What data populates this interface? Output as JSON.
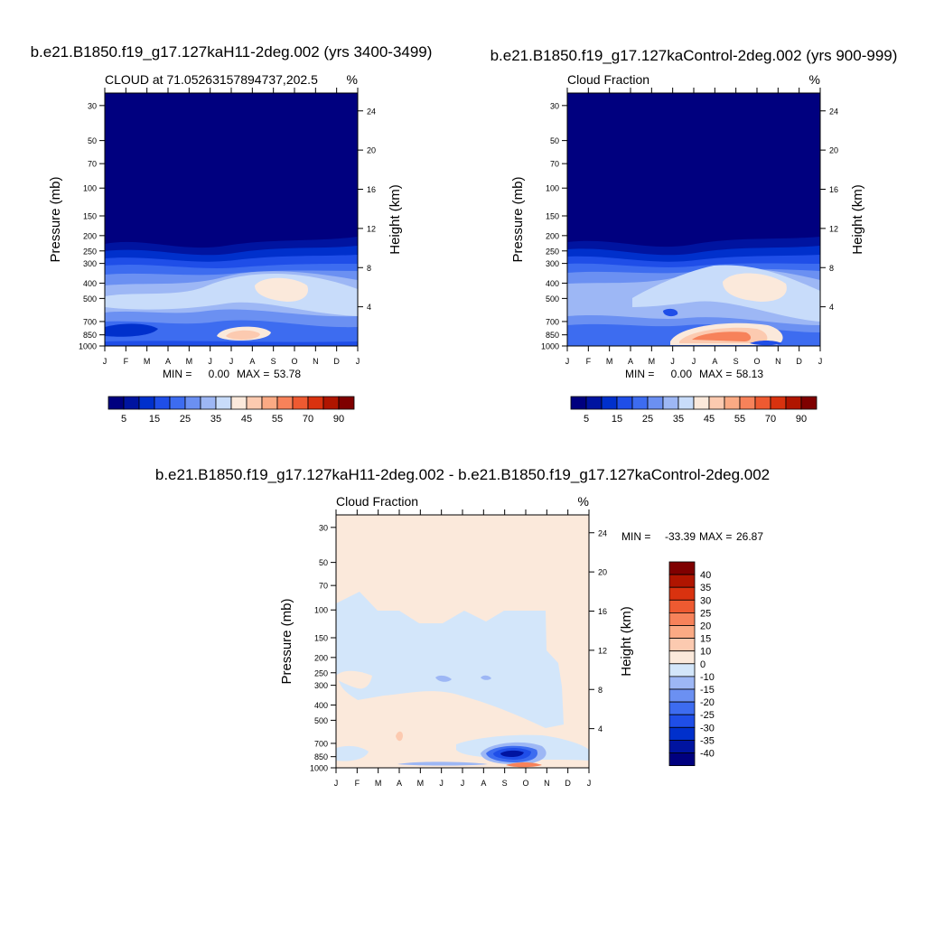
{
  "colors": {
    "cloud_scale": [
      "#00007f",
      "#0014a0",
      "#0030cc",
      "#1f4ee8",
      "#3d6cf0",
      "#6b90f2",
      "#9db7f5",
      "#c8dcfa",
      "#fbe9db",
      "#fccab0",
      "#fbaa84",
      "#f7825a",
      "#ee5a31",
      "#d9320f",
      "#b01500",
      "#7f0000"
    ],
    "diff_scale": [
      "#00007f",
      "#0014a0",
      "#0030cc",
      "#1f4ee8",
      "#3d6cf0",
      "#6b90f2",
      "#9db7f5",
      "#d3e6fa",
      "#fbe9db",
      "#fccab0",
      "#fbaa84",
      "#f7825a",
      "#ee5a31",
      "#d9320f",
      "#b01500",
      "#7f0000"
    ]
  },
  "chart_data": [
    {
      "type": "heatmap",
      "title": "b.e21.B1850.f19_g17.127kaH11-2deg.002 (yrs 3400-3499)",
      "subtitle": "CLOUD at 71.05263157894737,202.5",
      "units": "%",
      "ylabel": "Pressure (mb)",
      "ylabel_right": "Height (km)",
      "x_ticks": [
        "J",
        "F",
        "M",
        "A",
        "M",
        "J",
        "J",
        "A",
        "S",
        "O",
        "N",
        "D",
        "J"
      ],
      "y_ticks": [
        30,
        50,
        70,
        100,
        150,
        200,
        250,
        300,
        400,
        500,
        700,
        850,
        1000
      ],
      "height_ticks": [
        24,
        20,
        16,
        12,
        8,
        4
      ],
      "min_label": "MIN =",
      "min_value": "0.00",
      "max_label": "MAX =",
      "max_value": "53.78",
      "colorbar_labels": [
        "5",
        "15",
        "25",
        "35",
        "45",
        "55",
        "70",
        "90"
      ]
    },
    {
      "type": "heatmap",
      "title": "b.e21.B1850.f19_g17.127kaControl-2deg.002 (yrs 900-999)",
      "subtitle": "Cloud Fraction",
      "units": "%",
      "ylabel": "Pressure (mb)",
      "ylabel_right": "Height (km)",
      "x_ticks": [
        "J",
        "F",
        "M",
        "A",
        "M",
        "J",
        "J",
        "A",
        "S",
        "O",
        "N",
        "D",
        "J"
      ],
      "y_ticks": [
        30,
        50,
        70,
        100,
        150,
        200,
        250,
        300,
        400,
        500,
        700,
        850,
        1000
      ],
      "height_ticks": [
        24,
        20,
        16,
        12,
        8,
        4
      ],
      "min_label": "MIN =",
      "min_value": "0.00",
      "max_label": "MAX =",
      "max_value": "58.13",
      "colorbar_labels": [
        "5",
        "15",
        "25",
        "35",
        "45",
        "55",
        "70",
        "90"
      ]
    },
    {
      "type": "heatmap",
      "title": "b.e21.B1850.f19_g17.127kaH11-2deg.002 - b.e21.B1850.f19_g17.127kaControl-2deg.002",
      "subtitle": "Cloud Fraction",
      "units": "%",
      "ylabel": "Pressure (mb)",
      "ylabel_right": "Height (km)",
      "x_ticks": [
        "J",
        "F",
        "M",
        "A",
        "M",
        "J",
        "J",
        "A",
        "S",
        "O",
        "N",
        "D",
        "J"
      ],
      "y_ticks": [
        30,
        50,
        70,
        100,
        150,
        200,
        250,
        300,
        400,
        500,
        700,
        850,
        1000
      ],
      "height_ticks": [
        24,
        20,
        16,
        12,
        8,
        4
      ],
      "min_label": "MIN =",
      "min_value": "-33.39",
      "max_label": "MAX =",
      "max_value": "26.87",
      "colorbar_labels": [
        "40",
        "35",
        "30",
        "25",
        "20",
        "15",
        "10",
        "0",
        "-10",
        "-15",
        "-20",
        "-25",
        "-30",
        "-35",
        "-40"
      ]
    }
  ]
}
